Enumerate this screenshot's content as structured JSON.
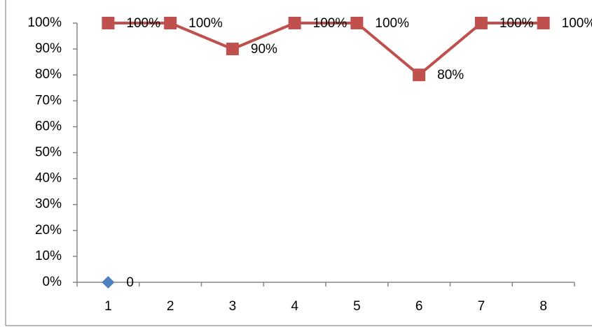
{
  "chart_data": {
    "type": "line",
    "categories": [
      "1",
      "2",
      "3",
      "4",
      "5",
      "6",
      "7",
      "8"
    ],
    "series": [
      {
        "color": "#c0504d",
        "marker": "square",
        "values": [
          100,
          100,
          90,
          100,
          100,
          80,
          100,
          100
        ],
        "value_labels": [
          "100%",
          "100%",
          "90%",
          "100%",
          "100%",
          "80%",
          "100%",
          "100%"
        ]
      },
      {
        "color": "#4f81bd",
        "marker": "diamond",
        "values": [
          0,
          null,
          null,
          null,
          null,
          null,
          null,
          null
        ]
      }
    ],
    "ylim": [
      0,
      100
    ],
    "yticks": [
      {
        "value": 0,
        "label": "0%"
      },
      {
        "value": 10,
        "label": "10%"
      },
      {
        "value": 20,
        "label": "20%"
      },
      {
        "value": 30,
        "label": "30%"
      },
      {
        "value": 40,
        "label": "40%"
      },
      {
        "value": 50,
        "label": "50%"
      },
      {
        "value": 60,
        "label": "60%"
      },
      {
        "value": 70,
        "label": "70%"
      },
      {
        "value": 80,
        "label": "80%"
      },
      {
        "value": 90,
        "label": "90%"
      },
      {
        "value": 100,
        "label": "100%"
      }
    ],
    "grid": false
  }
}
